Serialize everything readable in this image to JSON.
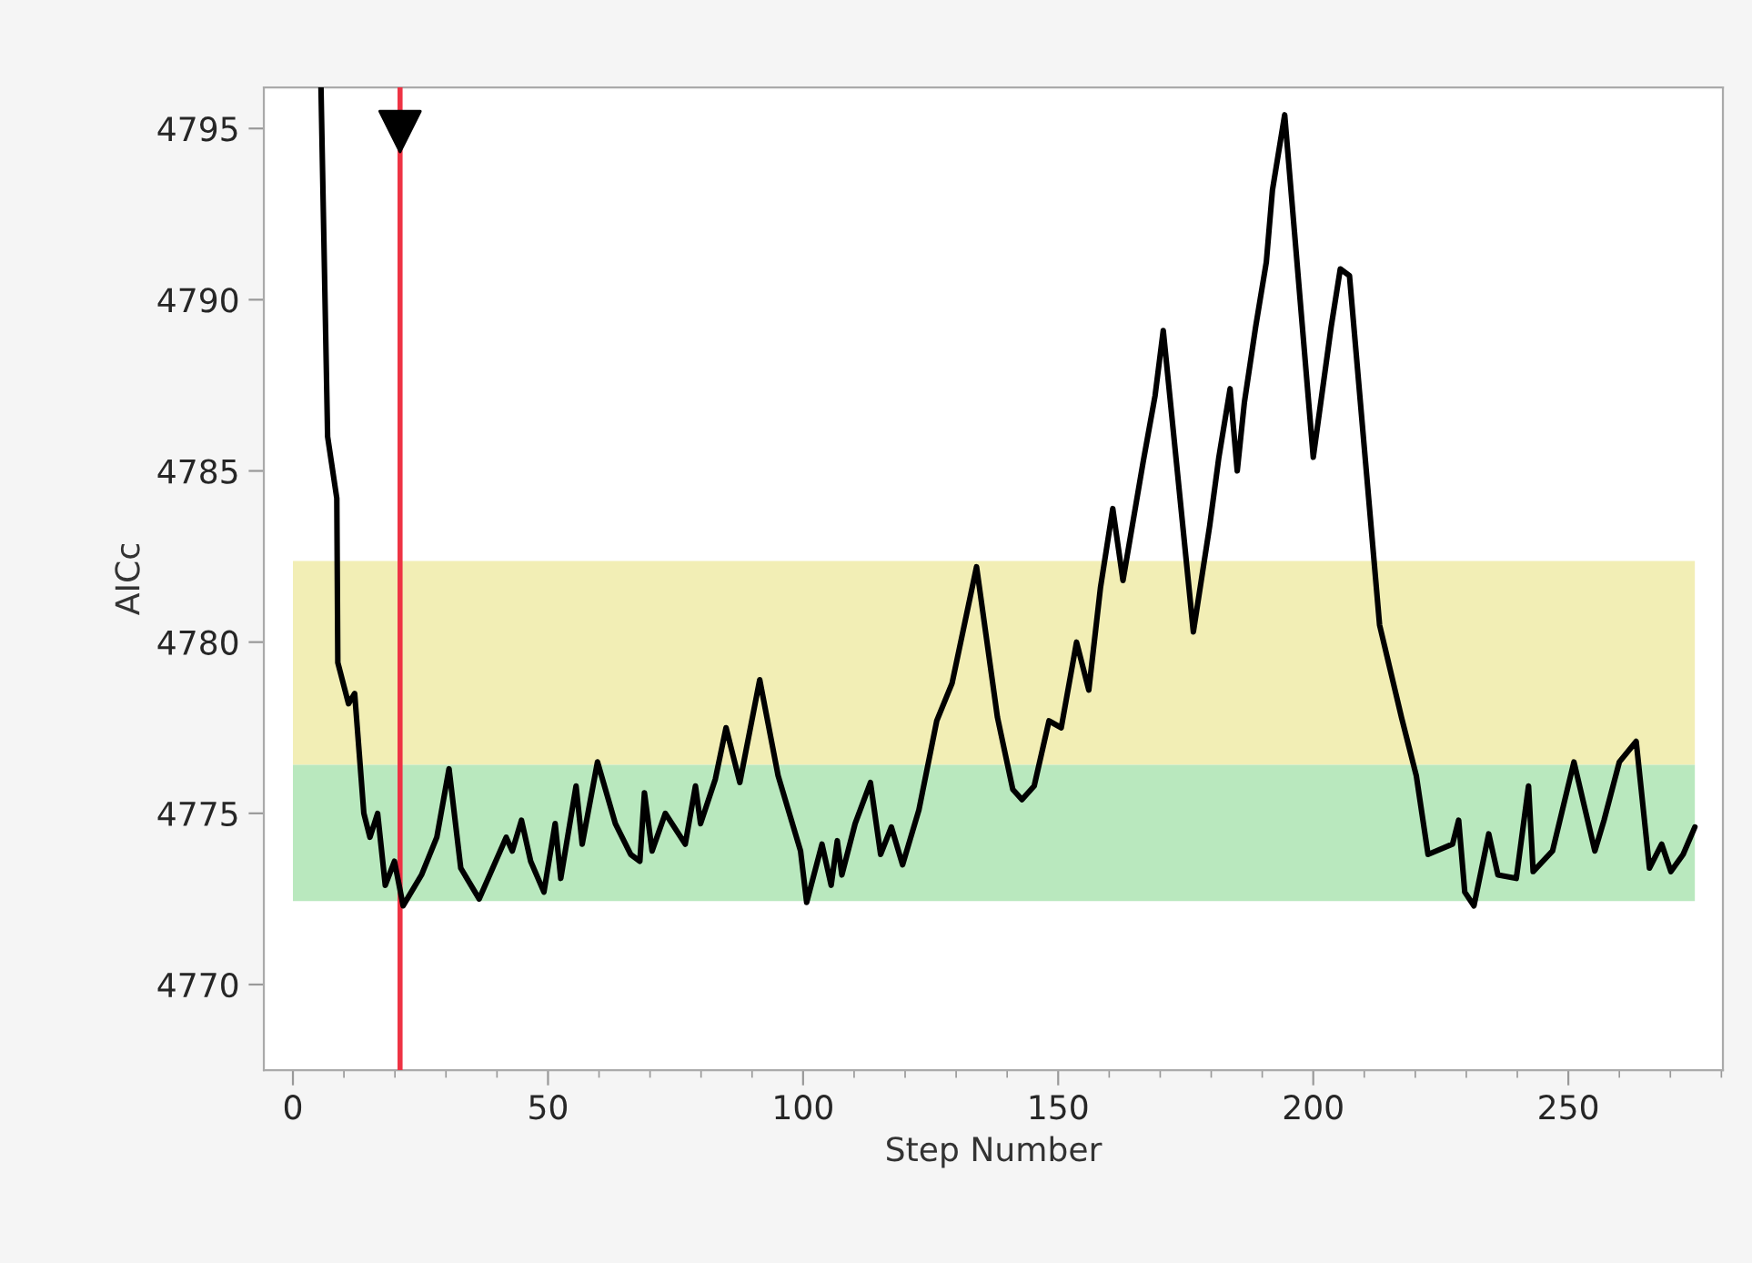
{
  "chart_data": {
    "type": "line",
    "xlabel": "Step Number",
    "ylabel": "AICc",
    "xlim": [
      -5.7,
      280.3
    ],
    "ylim": [
      4767.5,
      4796.2
    ],
    "xticks": [
      0,
      50,
      100,
      150,
      200,
      250
    ],
    "yticks": [
      4770,
      4775,
      4780,
      4785,
      4790,
      4795
    ],
    "grid": false,
    "legend": false,
    "bands": [
      {
        "axis": "y",
        "from": 4776.42,
        "to": 4782.37,
        "color": "#f2eeb5"
      },
      {
        "axis": "y",
        "from": 4772.44,
        "to": 4776.42,
        "color": "#b9e8be"
      }
    ],
    "ref_lines": [
      {
        "axis": "x",
        "value": 21,
        "color": "#ee3344"
      }
    ],
    "series": [
      {
        "color": "#000000",
        "x": [
          5.5,
          6.8,
          8.6,
          8.8,
          10.9,
          12.1,
          13.9,
          15.1,
          16.6,
          18.1,
          19.9,
          21.6,
          25.2,
          28.2,
          30.6,
          32.9,
          36.5,
          41.8,
          43.0,
          44.8,
          46.6,
          49.2,
          51.4,
          52.5,
          55.5,
          56.7,
          59.7,
          63.2,
          66.2,
          68.0,
          68.9,
          70.4,
          73.0,
          76.9,
          78.9,
          79.9,
          82.8,
          84.9,
          87.6,
          91.5,
          95.1,
          99.5,
          100.7,
          103.7,
          105.5,
          106.7,
          107.6,
          110.2,
          113.2,
          115.2,
          117.3,
          119.5,
          122.7,
          126.2,
          129.2,
          134.0,
          138.1,
          141.1,
          142.9,
          145.3,
          148.2,
          150.6,
          153.6,
          156.0,
          158.3,
          160.7,
          162.7,
          166.7,
          169.0,
          170.6,
          176.5,
          179.7,
          181.5,
          183.7,
          185.1,
          186.5,
          188.7,
          190.8,
          192.0,
          194.4,
          200.0,
          203.5,
          205.3,
          207.1,
          213.0,
          217.3,
          220.2,
          222.5,
          227.3,
          228.5,
          229.7,
          231.5,
          234.4,
          236.2,
          239.8,
          242.2,
          243.1,
          246.9,
          251.1,
          255.2,
          257.0,
          260.0,
          263.3,
          265.9,
          268.3,
          270.1,
          272.5,
          274.8
        ],
        "values": [
          4796.2,
          4786.0,
          4784.2,
          4779.4,
          4778.2,
          4778.5,
          4775.0,
          4774.3,
          4775.0,
          4772.9,
          4773.6,
          4772.3,
          4773.2,
          4774.3,
          4776.3,
          4773.4,
          4772.5,
          4774.3,
          4773.9,
          4774.8,
          4773.6,
          4772.7,
          4774.7,
          4773.1,
          4775.8,
          4774.1,
          4776.5,
          4774.7,
          4773.8,
          4773.6,
          4775.6,
          4773.9,
          4775.0,
          4774.1,
          4775.8,
          4774.7,
          4776.0,
          4777.5,
          4775.9,
          4778.9,
          4776.1,
          4773.9,
          4772.4,
          4774.1,
          4772.9,
          4774.2,
          4773.2,
          4774.7,
          4775.9,
          4773.8,
          4774.6,
          4773.5,
          4775.1,
          4777.7,
          4778.8,
          4782.2,
          4777.8,
          4775.7,
          4775.4,
          4775.8,
          4777.7,
          4777.5,
          4780.0,
          4778.6,
          4781.6,
          4783.9,
          4781.8,
          4785.3,
          4787.2,
          4789.1,
          4780.3,
          4783.4,
          4785.4,
          4787.4,
          4785.0,
          4787.0,
          4789.2,
          4791.1,
          4793.2,
          4795.4,
          4785.4,
          4789.2,
          4790.9,
          4790.7,
          4780.5,
          4777.8,
          4776.1,
          4773.8,
          4774.1,
          4774.8,
          4772.7,
          4772.3,
          4774.4,
          4773.2,
          4773.1,
          4775.8,
          4773.3,
          4773.9,
          4776.5,
          4773.9,
          4774.8,
          4776.5,
          4777.1,
          4773.4,
          4774.1,
          4773.3,
          4773.8,
          4774.6
        ]
      }
    ]
  }
}
